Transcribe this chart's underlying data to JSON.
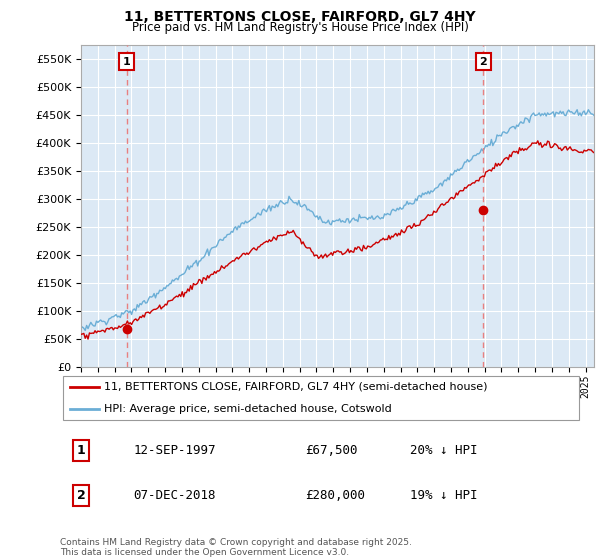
{
  "title": "11, BETTERTONS CLOSE, FAIRFORD, GL7 4HY",
  "subtitle": "Price paid vs. HM Land Registry's House Price Index (HPI)",
  "legend_line1": "11, BETTERTONS CLOSE, FAIRFORD, GL7 4HY (semi-detached house)",
  "legend_line2": "HPI: Average price, semi-detached house, Cotswold",
  "annotation1_label": "1",
  "annotation1_date": "12-SEP-1997",
  "annotation1_price": "£67,500",
  "annotation1_hpi": "20% ↓ HPI",
  "annotation2_label": "2",
  "annotation2_date": "07-DEC-2018",
  "annotation2_price": "£280,000",
  "annotation2_hpi": "19% ↓ HPI",
  "footnote": "Contains HM Land Registry data © Crown copyright and database right 2025.\nThis data is licensed under the Open Government Licence v3.0.",
  "ylim": [
    0,
    575000
  ],
  "sale1_x": 1997.71,
  "sale1_y": 67500,
  "sale2_x": 2018.93,
  "sale2_y": 280000,
  "hpi_color": "#6baed6",
  "price_color": "#cc0000",
  "vline_color": "#e88080",
  "sale_dot_color": "#cc0000",
  "chart_bg_color": "#dce9f5",
  "grid_color": "#ffffff",
  "xmin": 1995,
  "xmax": 2025.5
}
